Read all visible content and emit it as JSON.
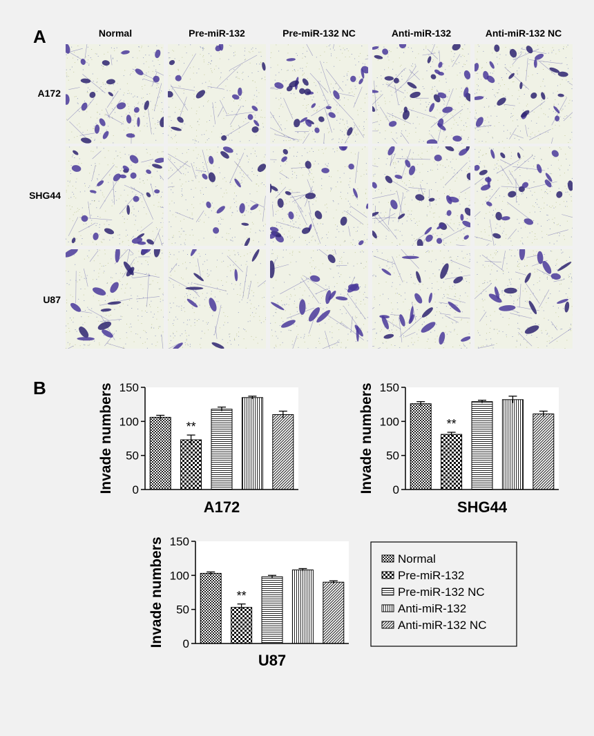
{
  "panel_a": {
    "label": "A",
    "columns": [
      "Normal",
      "Pre-miR-132",
      "Pre-miR-132 NC",
      "Anti-miR-132",
      "Anti-miR-132 NC"
    ],
    "rows": [
      "A172",
      "SHG44",
      "U87"
    ],
    "density": [
      [
        1.0,
        0.65,
        1.05,
        1.25,
        0.95
      ],
      [
        1.05,
        0.6,
        1.0,
        1.25,
        0.9
      ],
      [
        1.0,
        0.55,
        0.95,
        1.1,
        0.9
      ]
    ],
    "colors": {
      "background": "#f0f2e6",
      "stain": "#4a3a9a",
      "stain_dark": "#2e2570"
    }
  },
  "panel_b": {
    "label": "B"
  },
  "legend": {
    "entries": [
      "Normal",
      "Pre-miR-132",
      "Pre-miR-132 NC",
      "Anti-miR-132",
      "Anti-miR-132 NC"
    ]
  },
  "chart_data": [
    {
      "type": "bar",
      "title": "",
      "xlabel": "A172",
      "ylabel": "Invade numbers",
      "ylim": [
        0,
        150
      ],
      "yticks": [
        0,
        50,
        100,
        150
      ],
      "categories": [
        "Normal",
        "Pre-miR-132",
        "Pre-miR-132 NC",
        "Anti-miR-132",
        "Anti-miR-132 NC"
      ],
      "values": [
        106,
        73,
        118,
        135,
        110
      ],
      "errors": [
        3,
        7,
        3,
        2,
        5
      ],
      "annotations": [
        {
          "category": "Pre-miR-132",
          "text": "**"
        }
      ]
    },
    {
      "type": "bar",
      "title": "",
      "xlabel": "SHG44",
      "ylabel": "Invade numbers",
      "ylim": [
        0,
        150
      ],
      "yticks": [
        0,
        50,
        100,
        150
      ],
      "categories": [
        "Normal",
        "Pre-miR-132",
        "Pre-miR-132 NC",
        "Anti-miR-132",
        "Anti-miR-132 NC"
      ],
      "values": [
        126,
        81,
        129,
        132,
        111
      ],
      "errors": [
        3,
        3,
        2,
        5,
        4
      ],
      "annotations": [
        {
          "category": "Pre-miR-132",
          "text": "**"
        }
      ]
    },
    {
      "type": "bar",
      "title": "",
      "xlabel": "U87",
      "ylabel": "Invade numbers",
      "ylim": [
        0,
        150
      ],
      "yticks": [
        0,
        50,
        100,
        150
      ],
      "categories": [
        "Normal",
        "Pre-miR-132",
        "Pre-miR-132 NC",
        "Anti-miR-132",
        "Anti-miR-132 NC"
      ],
      "values": [
        103,
        53,
        98,
        108,
        90
      ],
      "errors": [
        2,
        5,
        2,
        2,
        2
      ],
      "annotations": [
        {
          "category": "Pre-miR-132",
          "text": "**"
        }
      ]
    }
  ]
}
